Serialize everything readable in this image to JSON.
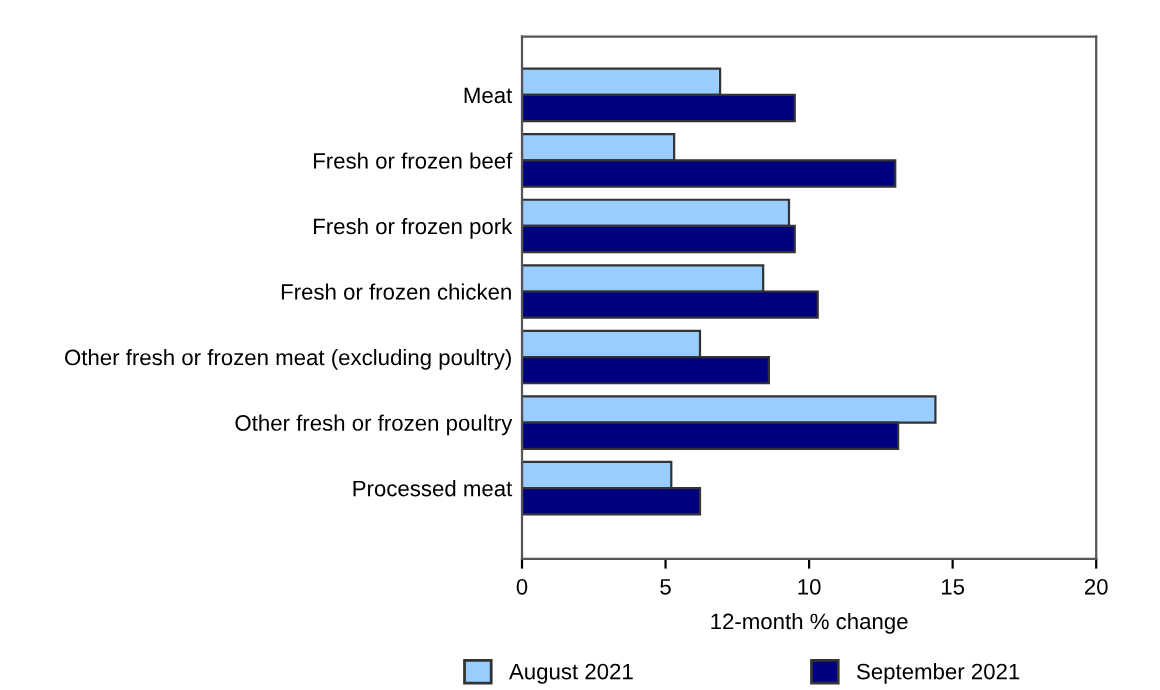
{
  "chart_data": {
    "type": "bar",
    "orientation": "horizontal",
    "xlabel": "12-month % change",
    "categories": [
      "Meat",
      "Fresh or frozen beef",
      "Fresh or frozen pork",
      "Fresh or frozen chicken",
      "Other fresh or frozen meat (excluding poultry)",
      "Other fresh or frozen poultry",
      "Processed meat"
    ],
    "series": [
      {
        "name": "August 2021",
        "color": "#99ccff",
        "values": [
          6.9,
          5.3,
          9.3,
          8.4,
          6.2,
          14.4,
          5.2
        ]
      },
      {
        "name": "September 2021",
        "color": "#000080",
        "values": [
          9.5,
          13.0,
          9.5,
          10.3,
          8.6,
          13.1,
          6.2
        ]
      }
    ],
    "xlim": [
      0,
      20
    ],
    "xticks": [
      0,
      5,
      10,
      15,
      20
    ],
    "grid": false,
    "legend": "bottom"
  }
}
